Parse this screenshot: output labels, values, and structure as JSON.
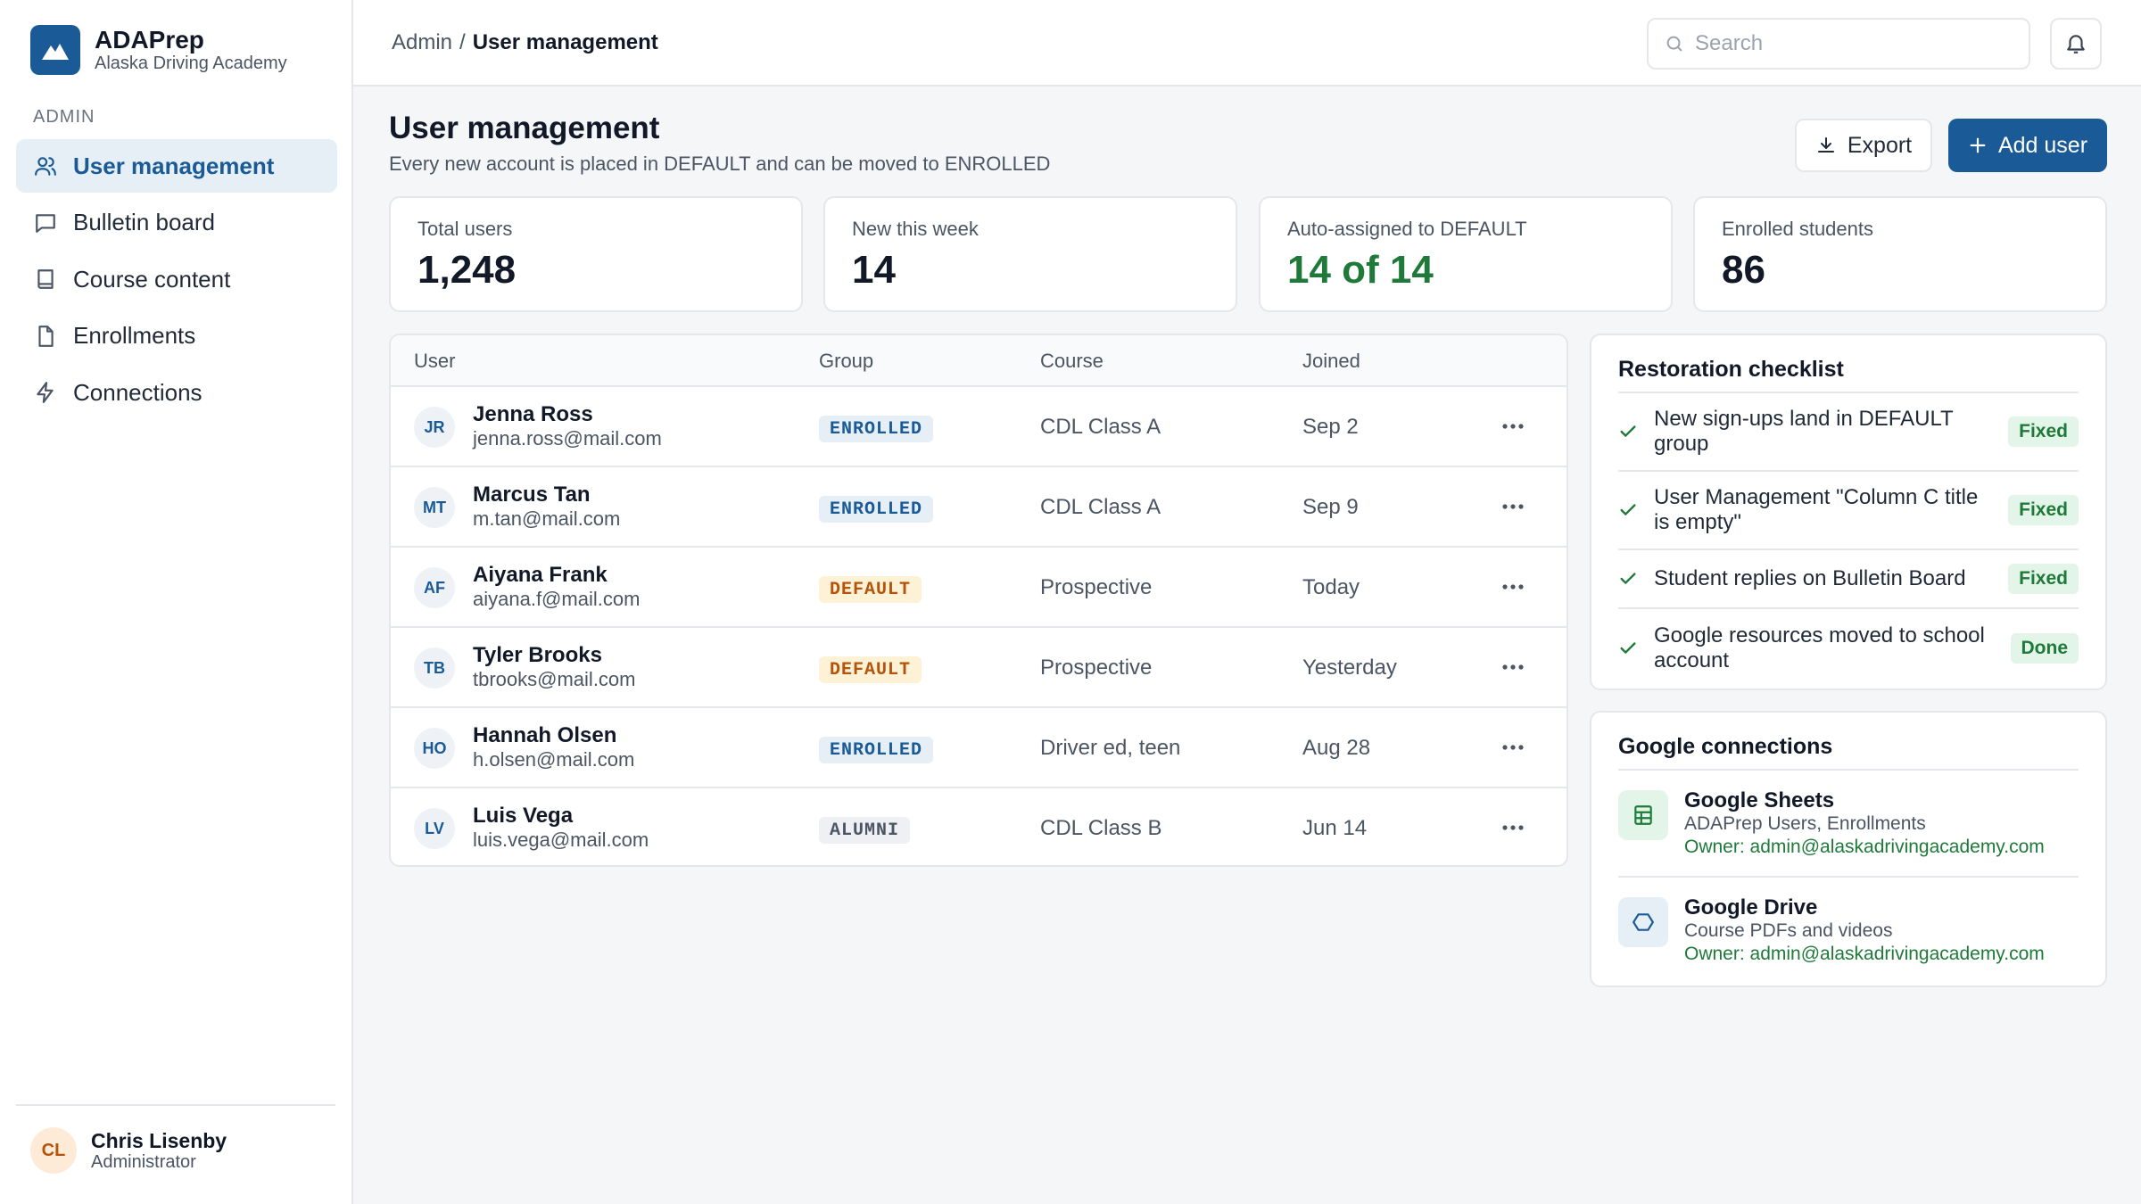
{
  "brand": {
    "name": "ADAPrep",
    "subtitle": "Alaska Driving Academy"
  },
  "sidebar": {
    "section_label": "ADMIN",
    "items": [
      {
        "label": "User management",
        "icon": "users-icon",
        "active": true
      },
      {
        "label": "Bulletin board",
        "icon": "message-square-icon"
      },
      {
        "label": "Course content",
        "icon": "book-icon"
      },
      {
        "label": "Enrollments",
        "icon": "file-icon"
      },
      {
        "label": "Connections",
        "icon": "zap-icon"
      }
    ],
    "current_user": {
      "initials": "CL",
      "name": "Chris Lisenby",
      "role": "Administrator"
    }
  },
  "topbar": {
    "breadcrumb": {
      "parent": "Admin",
      "separator": "/",
      "current": "User management"
    },
    "search": {
      "placeholder": "Search",
      "value": ""
    }
  },
  "header": {
    "title": "User management",
    "subtitle": "Every new account is placed in DEFAULT and can be moved to ENROLLED",
    "export_label": "Export",
    "add_label": "Add user"
  },
  "stats": [
    {
      "label": "Total users",
      "value": "1,248"
    },
    {
      "label": "New this week",
      "value": "14"
    },
    {
      "label": "Auto-assigned to DEFAULT",
      "value": "14 of 14",
      "accent": "#1f7a3a"
    },
    {
      "label": "Enrolled students",
      "value": "86"
    }
  ],
  "table": {
    "columns": [
      "User",
      "Group",
      "Course",
      "Joined"
    ],
    "rows": [
      {
        "initials": "JR",
        "name": "Jenna Ross",
        "email": "jenna.ross@mail.com",
        "group": "ENROLLED",
        "course": "CDL Class A",
        "joined": "Sep 2"
      },
      {
        "initials": "MT",
        "name": "Marcus Tan",
        "email": "m.tan@mail.com",
        "group": "ENROLLED",
        "course": "CDL Class A",
        "joined": "Sep 9"
      },
      {
        "initials": "AF",
        "name": "Aiyana Frank",
        "email": "aiyana.f@mail.com",
        "group": "DEFAULT",
        "course": "Prospective",
        "joined": "Today"
      },
      {
        "initials": "TB",
        "name": "Tyler Brooks",
        "email": "tbrooks@mail.com",
        "group": "DEFAULT",
        "course": "Prospective",
        "joined": "Yesterday"
      },
      {
        "initials": "HO",
        "name": "Hannah Olsen",
        "email": "h.olsen@mail.com",
        "group": "ENROLLED",
        "course": "Driver ed, teen",
        "joined": "Aug 28"
      },
      {
        "initials": "LV",
        "name": "Luis Vega",
        "email": "luis.vega@mail.com",
        "group": "ALUMNI",
        "course": "CDL Class B",
        "joined": "Jun 14"
      }
    ]
  },
  "checklist": {
    "title": "Restoration checklist",
    "items": [
      {
        "text": "New sign-ups land in DEFAULT group",
        "status": "Fixed"
      },
      {
        "text": "User Management \"Column C title is empty\"",
        "status": "Fixed"
      },
      {
        "text": "Student replies on Bulletin Board",
        "status": "Fixed"
      },
      {
        "text": "Google resources moved to school account",
        "status": "Done"
      }
    ]
  },
  "connections": {
    "title": "Google connections",
    "items": [
      {
        "name": "Google Sheets",
        "desc": "ADAPrep Users, Enrollments",
        "owner": "Owner: admin@alaskadrivingacademy.com",
        "icon": "sheets-icon"
      },
      {
        "name": "Google Drive",
        "desc": "Course PDFs and videos",
        "owner": "Owner: admin@alaskadrivingacademy.com",
        "icon": "drive-icon"
      }
    ]
  },
  "colors": {
    "primary": "#1a5a96",
    "success": "#1f7a3a",
    "warning": "#b45309"
  }
}
